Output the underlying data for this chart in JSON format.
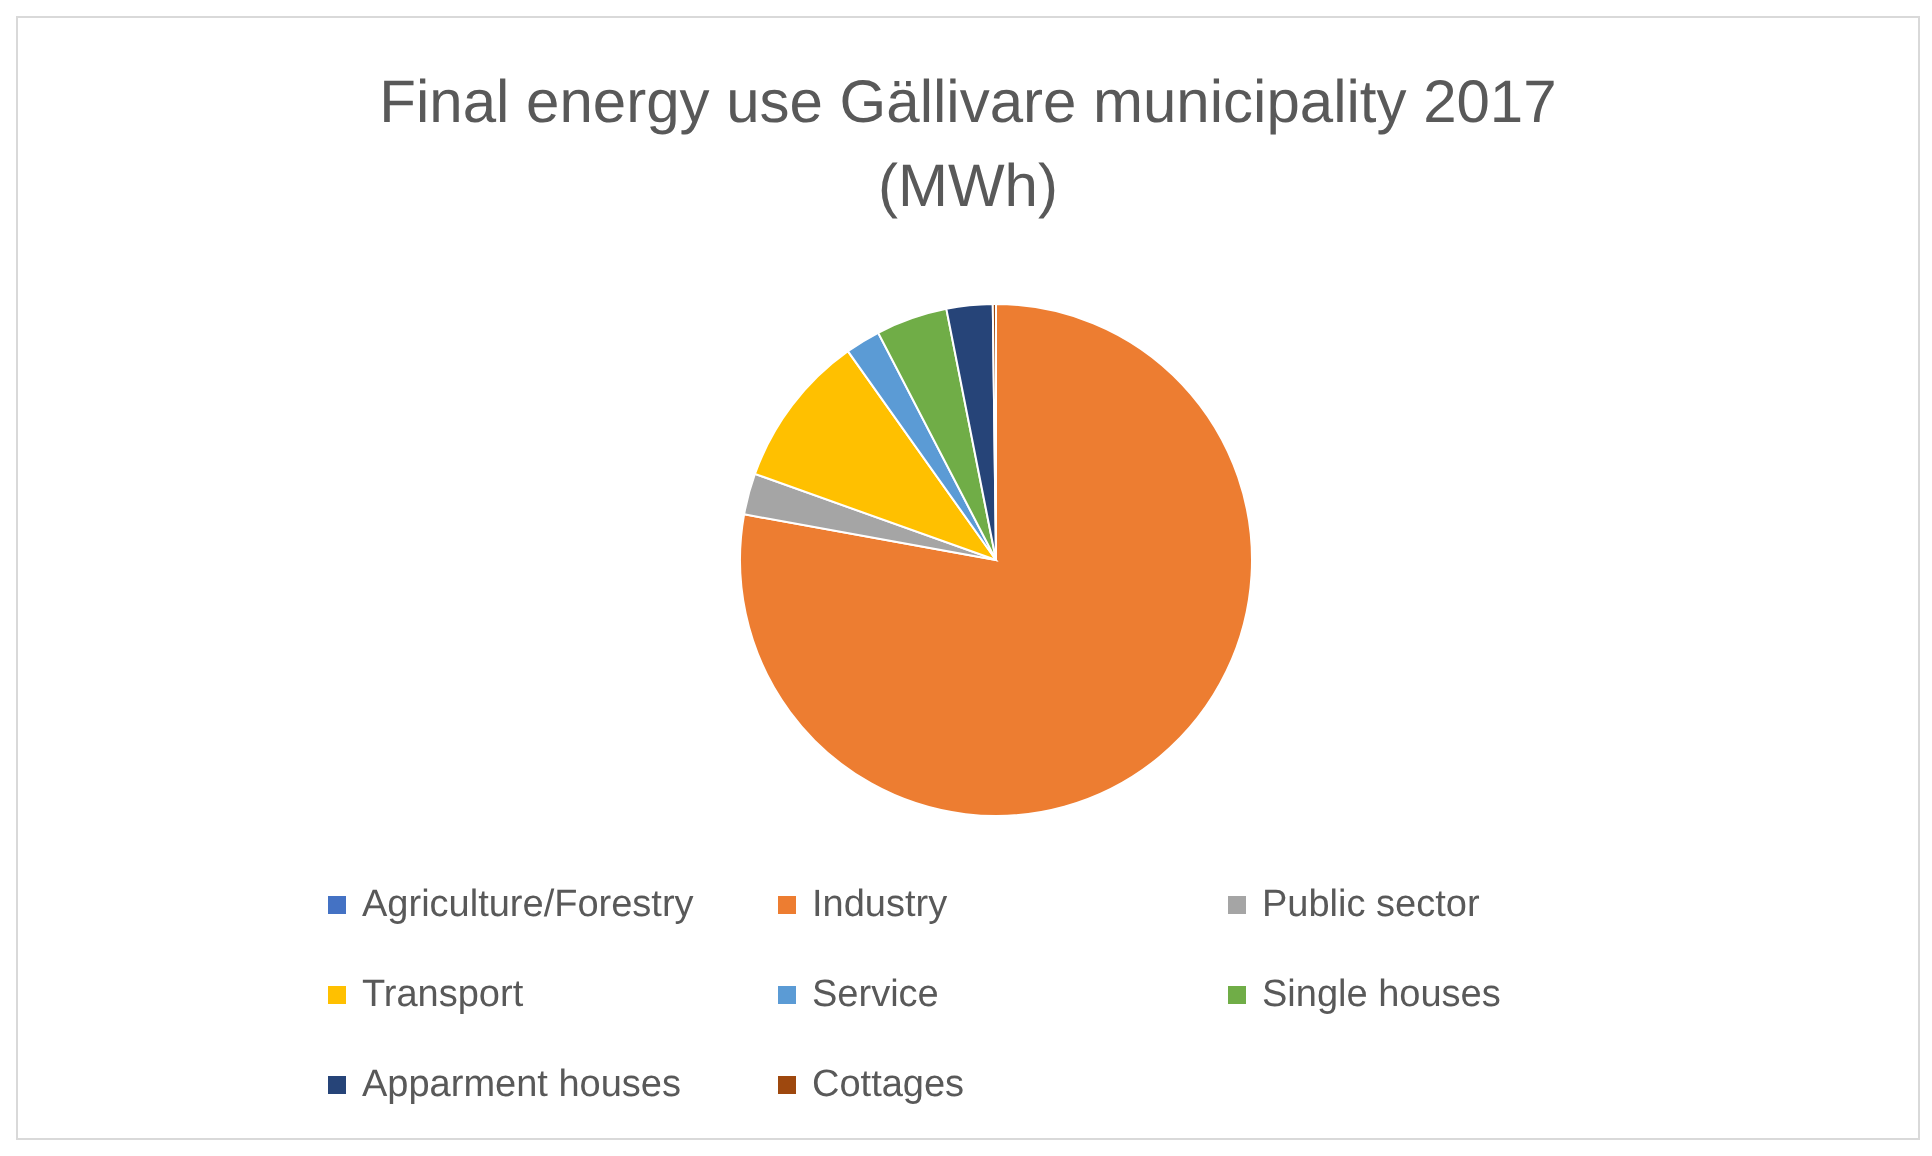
{
  "chart_data": {
    "type": "pie",
    "title": "Final energy use Gällivare municipality 2017 (MWh)",
    "categories": [
      "Agriculture/Forestry",
      "Industry",
      "Public sector",
      "Transport",
      "Service",
      "Single houses",
      "Apparment houses",
      "Cottages"
    ],
    "values": [
      null,
      77.7,
      2.6,
      9.7,
      2.2,
      4.5,
      2.9,
      0.2
    ],
    "colors": [
      "#4472c4",
      "#ed7d31",
      "#a5a5a5",
      "#ffc000",
      "#5b9bd5",
      "#70ad47",
      "#264478",
      "#9e480e"
    ],
    "legend": "bottom"
  }
}
